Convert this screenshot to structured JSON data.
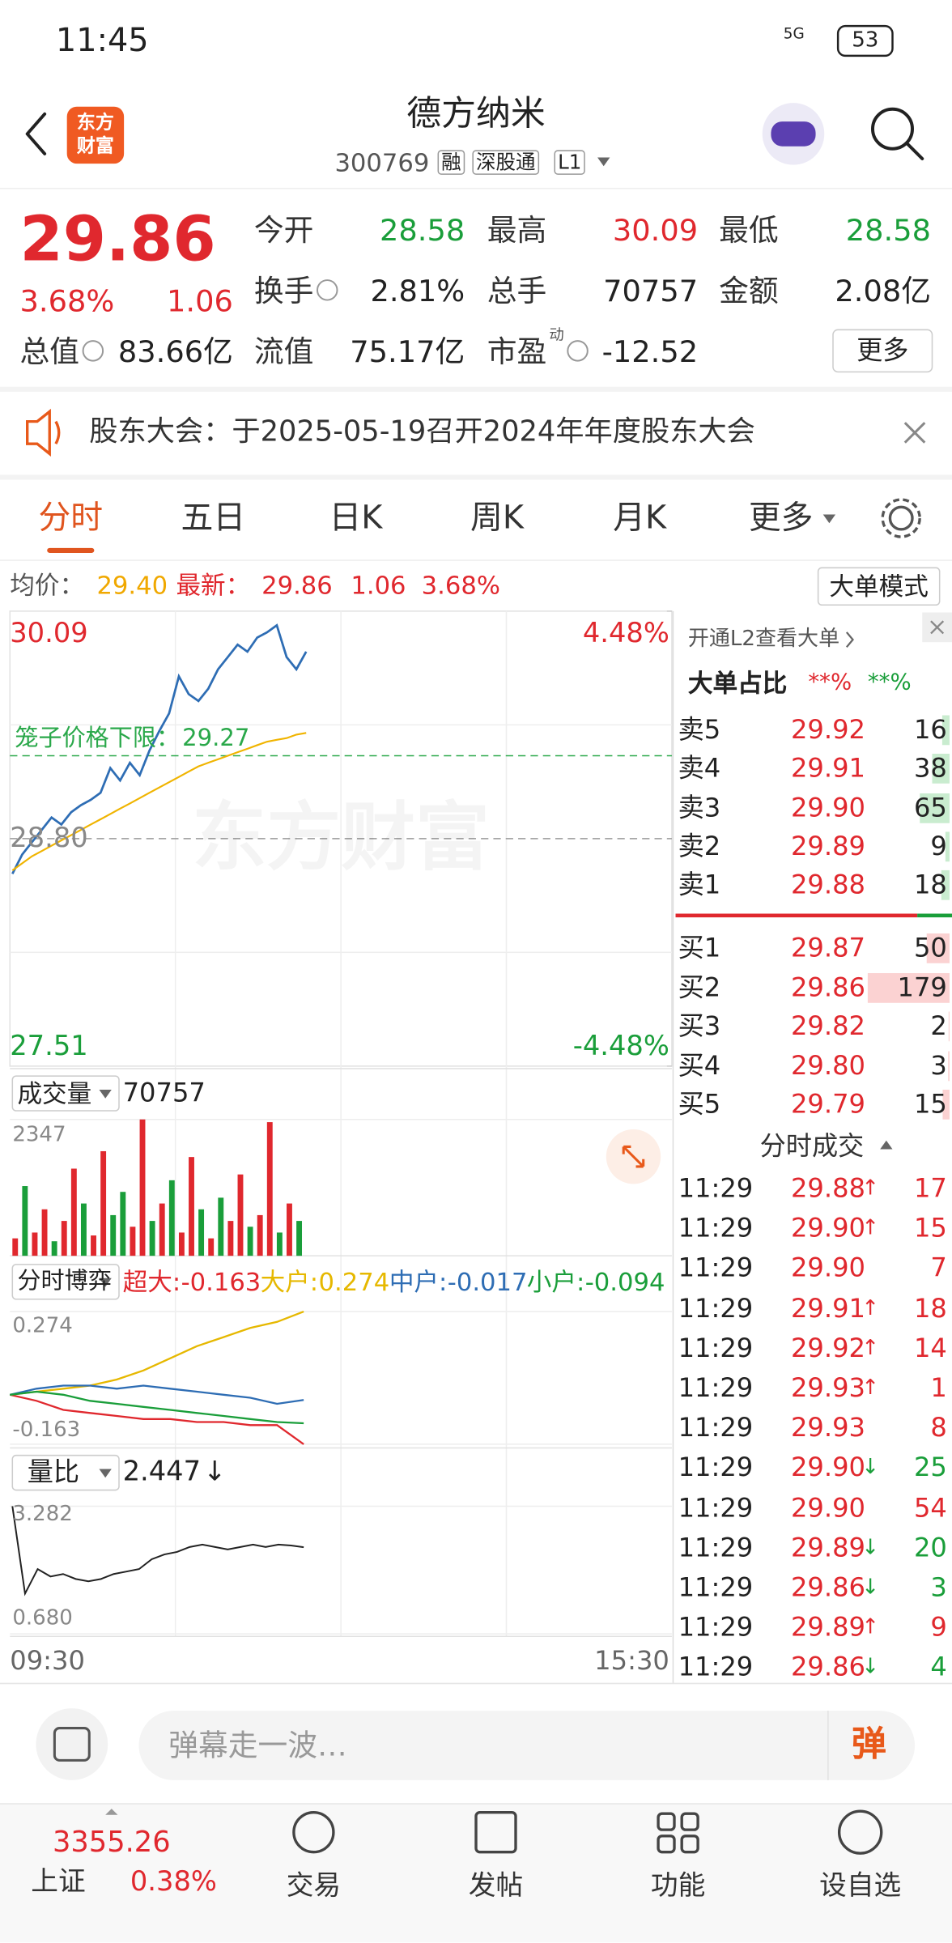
{
  "status_bar": {
    "time": "11:45",
    "network": "5G",
    "battery": "53"
  },
  "header": {
    "logo": [
      "东方",
      "财富"
    ],
    "title": "德方纳米",
    "code": "300769",
    "tags": [
      "融",
      "深股通",
      "L1"
    ]
  },
  "quote": {
    "price": "29.86",
    "change_pct": "3.68%",
    "change": "1.06",
    "trend": "up",
    "fields": [
      {
        "label": "今开",
        "value": "28.58",
        "trend": "down"
      },
      {
        "label": "最高",
        "value": "30.09",
        "trend": "up"
      },
      {
        "label": "最低",
        "value": "28.58",
        "trend": "down"
      },
      {
        "label": "换手",
        "info": true,
        "value": "2.81%"
      },
      {
        "label": "总手",
        "value": "70757"
      },
      {
        "label": "金额",
        "value": "2.08亿"
      },
      {
        "label": "总值",
        "info": true,
        "value": "83.66亿"
      },
      {
        "label": "流值",
        "value": "75.17亿"
      },
      {
        "label": "市盈",
        "superscript": "动",
        "info": true,
        "value": "-12.52"
      }
    ],
    "more": "更多"
  },
  "notice": {
    "text": "股东大会：于2025-05-19召开2024年年度股东大会"
  },
  "tabs": {
    "items": [
      "分时",
      "五日",
      "日K",
      "周K",
      "月K",
      "更多"
    ],
    "active": 0
  },
  "info": {
    "avg_label": "均价：",
    "avg": "29.40",
    "last_label": "最新：",
    "last": "29.86",
    "change": "1.06",
    "change_pct": "3.68%",
    "mode_button": "大单模式"
  },
  "watermark": "东方财富",
  "charts": [
    {
      "type": "line",
      "ylim": [
        27.51,
        30.09
      ],
      "yticks": [
        30.09,
        {
          "value": 28.8,
          "label": "28.80"
        },
        27.51
      ],
      "y2lim": [
        -4.48,
        4.48
      ],
      "y2ticks": [
        {
          "value": 4.48,
          "label": "4.48%"
        },
        {
          "value": -4.48,
          "label": "-4.48%"
        }
      ],
      "x_labels": [
        "09:30",
        "15:30"
      ],
      "reference": {
        "label": "笼子价格下限：",
        "value": 29.27,
        "color": "#2aa84a"
      },
      "series": [
        {
          "color": "#2e6db4",
          "values": [
            28.6,
            28.71,
            28.78,
            28.85,
            28.92,
            28.88,
            28.95,
            28.99,
            29.02,
            29.06,
            29.2,
            29.13,
            29.23,
            29.16,
            29.3,
            29.41,
            29.51,
            29.72,
            29.62,
            29.58,
            29.65,
            29.76,
            29.83,
            29.9,
            29.86,
            29.94,
            29.97,
            30.01,
            29.83,
            29.76,
            29.86
          ]
        },
        {
          "color": "#f0b400",
          "values": [
            28.62,
            28.66,
            28.7,
            28.73,
            28.76,
            28.79,
            28.82,
            28.85,
            28.88,
            28.91,
            28.94,
            28.97,
            29.0,
            29.03,
            29.06,
            29.09,
            29.12,
            29.15,
            29.18,
            29.21,
            29.23,
            29.25,
            29.27,
            29.29,
            29.31,
            29.33,
            29.35,
            29.36,
            29.37,
            29.39,
            29.4
          ]
        }
      ]
    },
    {
      "type": "bar",
      "label": "成交量",
      "total": "70757",
      "ylim": [
        0,
        2347
      ],
      "yticks": [
        2347
      ],
      "values": [
        300,
        1200,
        400,
        800,
        250,
        600,
        1500,
        900,
        350,
        1800,
        700,
        1100,
        500,
        2347,
        600,
        900,
        1300,
        400,
        1700,
        800,
        300,
        1000,
        600,
        1400,
        500,
        700,
        2300,
        400,
        900,
        600
      ],
      "colors": [
        "#e0282e",
        "#1a9e3a",
        "#e0282e",
        "#e0282e",
        "#1a9e3a",
        "#e0282e",
        "#e0282e",
        "#1a9e3a",
        "#e0282e",
        "#e0282e",
        "#1a9e3a",
        "#1a9e3a",
        "#e0282e",
        "#e0282e",
        "#1a9e3a",
        "#e0282e",
        "#1a9e3a",
        "#e0282e",
        "#e0282e",
        "#1a9e3a",
        "#e0282e",
        "#1a9e3a",
        "#e0282e",
        "#e0282e",
        "#1a9e3a",
        "#e0282e",
        "#e0282e",
        "#1a9e3a",
        "#e0282e",
        "#1a9e3a"
      ]
    },
    {
      "type": "line",
      "label": "分时博弈",
      "ylim": [
        -0.163,
        0.274
      ],
      "yticks": [
        0.274,
        -0.163
      ],
      "series": [
        {
          "name": "超大:",
          "color": "#e0282e",
          "values": [
            0.0,
            -0.02,
            -0.05,
            -0.06,
            -0.07,
            -0.08,
            -0.08,
            -0.09,
            -0.09,
            -0.1,
            -0.1,
            -0.163
          ]
        },
        {
          "name": "大户:",
          "color": "#e6b800",
          "values": [
            0.0,
            0.01,
            0.02,
            0.03,
            0.05,
            0.08,
            0.12,
            0.16,
            0.19,
            0.22,
            0.24,
            0.274
          ]
        },
        {
          "name": "中户:",
          "color": "#2e6db4",
          "values": [
            0.0,
            0.02,
            0.03,
            0.03,
            0.02,
            0.03,
            0.02,
            0.01,
            0.0,
            -0.01,
            -0.03,
            -0.017
          ]
        },
        {
          "name": "小户:",
          "color": "#1a9e3a",
          "values": [
            0.0,
            0.01,
            0.0,
            -0.02,
            -0.03,
            -0.04,
            -0.05,
            -0.06,
            -0.07,
            -0.08,
            -0.09,
            -0.094
          ]
        }
      ]
    },
    {
      "type": "line",
      "label": "量比",
      "current_arrow": "↓",
      "ylim": [
        0.68,
        3.282
      ],
      "yticks": [
        3.282,
        {
          "value": 0.68,
          "label": "0.680"
        }
      ],
      "color": "#222222",
      "values": [
        3.282,
        1.5,
        2.0,
        1.85,
        1.9,
        1.8,
        1.75,
        1.8,
        1.9,
        1.95,
        2.0,
        2.2,
        2.3,
        2.35,
        2.45,
        2.5,
        2.45,
        2.4,
        2.45,
        2.5,
        2.45,
        2.5,
        2.48,
        2.447
      ]
    }
  ],
  "order_book": {
    "promo": "开通L2查看大单",
    "title": "大单占比",
    "ratios": [
      "**%",
      "**%"
    ],
    "asks": [
      {
        "label": "卖5",
        "price": "29.92",
        "volume": 16
      },
      {
        "label": "卖4",
        "price": "29.91",
        "volume": 38
      },
      {
        "label": "卖3",
        "price": "29.90",
        "volume": 65
      },
      {
        "label": "卖2",
        "price": "29.89",
        "volume": 9
      },
      {
        "label": "卖1",
        "price": "29.88",
        "volume": 18
      }
    ],
    "bids": [
      {
        "label": "买1",
        "price": "29.87",
        "volume": 50
      },
      {
        "label": "买2",
        "price": "29.86",
        "volume": 179
      },
      {
        "label": "买3",
        "price": "29.82",
        "volume": 2
      },
      {
        "label": "买4",
        "price": "29.80",
        "volume": 3
      },
      {
        "label": "买5",
        "price": "29.79",
        "volume": 15
      }
    ]
  },
  "trades": {
    "title": "分时成交",
    "rows": [
      {
        "time": "11:29",
        "price": "29.88",
        "arrow": "↑",
        "volume": 17
      },
      {
        "time": "11:29",
        "price": "29.90",
        "arrow": "↑",
        "volume": 15
      },
      {
        "time": "11:29",
        "price": "29.90",
        "volume": 7
      },
      {
        "time": "11:29",
        "price": "29.91",
        "arrow": "↑",
        "volume": 18
      },
      {
        "time": "11:29",
        "price": "29.92",
        "arrow": "↑",
        "volume": 14
      },
      {
        "time": "11:29",
        "price": "29.93",
        "arrow": "↑",
        "volume": 1
      },
      {
        "time": "11:29",
        "price": "29.93",
        "volume": 8
      },
      {
        "time": "11:29",
        "price": "29.90",
        "arrow": "↓",
        "volume": 25
      },
      {
        "time": "11:29",
        "price": "29.90",
        "volume": 54
      },
      {
        "time": "11:29",
        "price": "29.89",
        "arrow": "↓",
        "volume": 20
      },
      {
        "time": "11:29",
        "price": "29.86",
        "arrow": "↓",
        "volume": 3
      },
      {
        "time": "11:29",
        "price": "29.89",
        "arrow": "↑",
        "volume": 9
      },
      {
        "time": "11:29",
        "price": "29.86",
        "arrow": "↓",
        "volume": 4
      }
    ]
  },
  "bottom": {
    "placeholder": "弹幕走一波…",
    "danmaku_button": "弹",
    "index": {
      "name": "上证",
      "value": "3355.26",
      "change_pct": "0.38%"
    },
    "nav": [
      "交易",
      "发帖",
      "功能",
      "设自选"
    ]
  }
}
